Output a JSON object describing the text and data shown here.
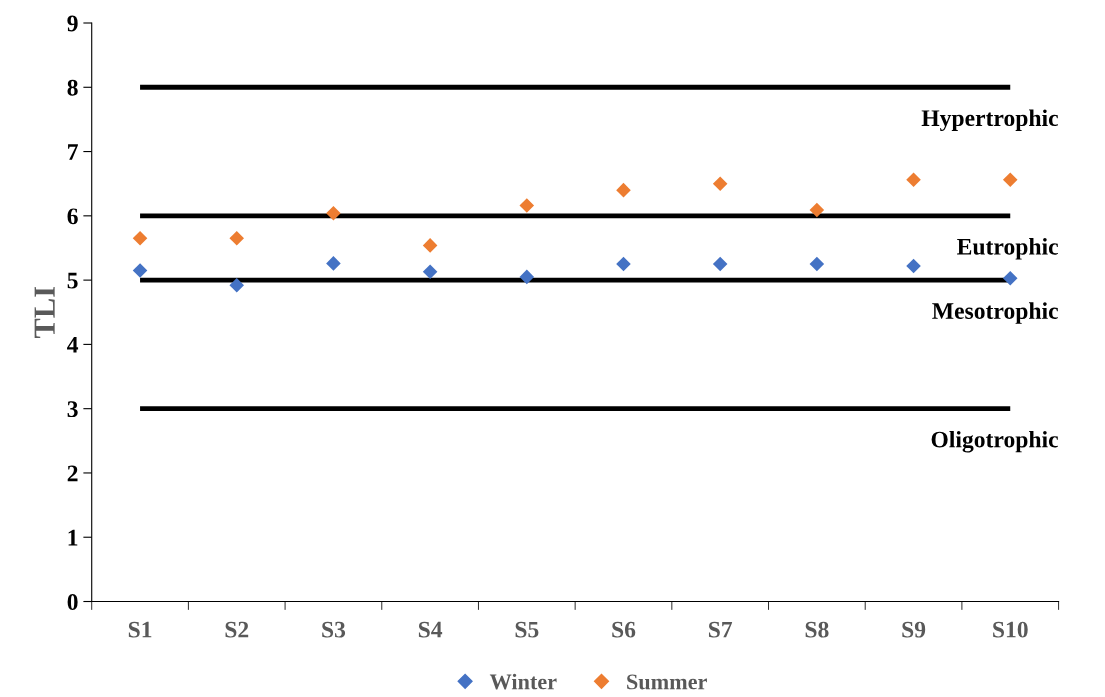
{
  "chart_data": {
    "type": "scatter",
    "ylabel": "TLI",
    "categories": [
      "S1",
      "S2",
      "S3",
      "S4",
      "S5",
      "S6",
      "S7",
      "S8",
      "S9",
      "S10"
    ],
    "series": [
      {
        "name": "Winter",
        "color": "#4472c4",
        "values": [
          5.15,
          4.92,
          5.26,
          5.13,
          5.05,
          5.25,
          5.25,
          5.25,
          5.22,
          5.03
        ]
      },
      {
        "name": "Summer",
        "color": "#ed7d31",
        "values": [
          5.65,
          5.65,
          6.04,
          5.54,
          6.16,
          6.4,
          6.5,
          6.09,
          6.56,
          6.56
        ]
      }
    ],
    "ylim": [
      0,
      9
    ],
    "yticks": [
      0,
      1,
      2,
      3,
      4,
      5,
      6,
      7,
      8,
      9
    ],
    "ref_lines": [
      {
        "axis": "y",
        "value": 8,
        "color": "#000000",
        "label": "Hypertrophic"
      },
      {
        "axis": "y",
        "value": 6,
        "color": "#000000",
        "label": "Eutrophic"
      },
      {
        "axis": "y",
        "value": 5,
        "color": "#000000",
        "label": "Mesotrophic"
      },
      {
        "axis": "y",
        "value": 3,
        "color": "#000000",
        "label": "Oligotrophic"
      }
    ],
    "marker": "diamond",
    "grid": false,
    "legend": "bottom"
  }
}
